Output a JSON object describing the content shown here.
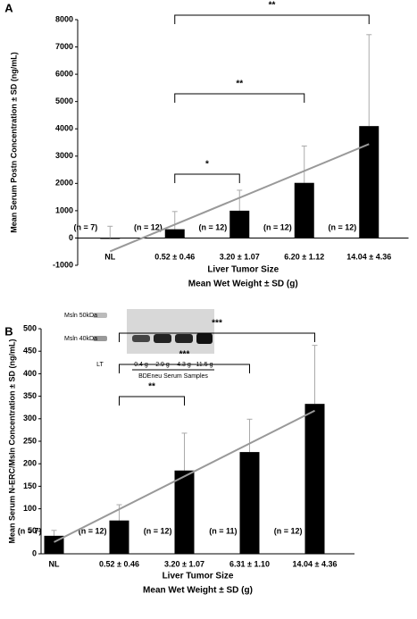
{
  "chart_data": [
    {
      "type": "bar",
      "label": "A",
      "ylabel": "Mean  Serum Postn Concentration ± SD (ng/mL)",
      "xlabel": [
        "Liver Tumor Size",
        "Mean Wet Weight ± SD (g)"
      ],
      "categories": [
        "NL",
        "0.52 ± 0.46",
        "3.20 ± 1.07",
        "6.20 ± 1.12",
        "14.04 ± 4.36"
      ],
      "values": [
        -20,
        320,
        1000,
        2020,
        4100
      ],
      "errors": [
        450,
        650,
        750,
        1350,
        3350
      ],
      "n_labels": [
        "(n = 7)",
        "(n = 12)",
        "(n = 12)",
        "(n = 12)",
        "(n = 12)"
      ],
      "color": "#000000",
      "error_color": "#aaaaaa",
      "trend": [
        -490,
        3440
      ],
      "trend_color": "#999999",
      "brackets": [
        {
          "text": "*",
          "from": 1,
          "to": 2
        },
        {
          "text": "**",
          "from": 1,
          "to": 3
        },
        {
          "text": "**",
          "from": 1,
          "to": 4
        }
      ],
      "ylim": [
        -1000,
        8000
      ],
      "yticks": [
        -1000,
        0,
        1000,
        2000,
        3000,
        4000,
        5000,
        6000,
        7000,
        8000
      ]
    },
    {
      "type": "bar",
      "label": "B",
      "ylabel": "Mean  Serum N-ERC/Msln Concentration ± SD (ng/mL)",
      "xlabel": [
        "Liver Tumor Size",
        "Mean Wet Weight ± SD (g)"
      ],
      "categories": [
        "NL",
        "0.52 ± 0.46",
        "3.20 ± 1.07",
        "6.31 ± 1.10",
        "14.04 ± 4.36"
      ],
      "values": [
        40,
        74,
        185,
        226,
        333
      ],
      "errors": [
        12,
        35,
        83,
        73,
        130
      ],
      "n_labels": [
        "(n = 7)",
        "(n = 12)",
        "(n = 12)",
        "(n = 11)",
        "(n = 12)"
      ],
      "color": "#000000",
      "error_color": "#aaaaaa",
      "trend": [
        26,
        318
      ],
      "trend_color": "#999999",
      "brackets": [
        {
          "text": "**",
          "from": 1,
          "to": 2
        },
        {
          "text": "***",
          "from": 1,
          "to": 3
        },
        {
          "text": "***",
          "from": 1,
          "to": 4
        }
      ],
      "inset": {
        "labels": [
          "Msln 50kDa",
          "Msln 40kDa"
        ],
        "lane_labels": [
          "LT",
          "0.4 g",
          "2.9 g",
          "4.3 g",
          "11.5 g"
        ],
        "caption": "BDEneu Serum Samples"
      },
      "ylim": [
        0,
        500
      ],
      "yticks": [
        0,
        50,
        100,
        150,
        200,
        250,
        300,
        350,
        400,
        450,
        500
      ]
    }
  ]
}
